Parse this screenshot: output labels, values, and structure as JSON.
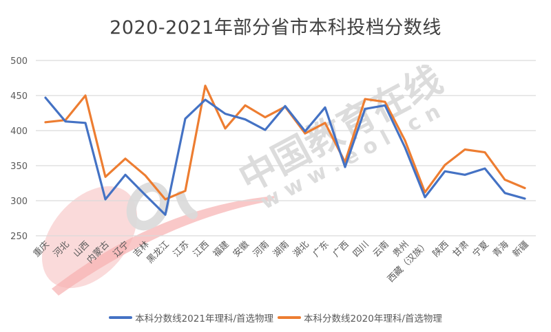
{
  "chart_data": {
    "type": "line",
    "title": "2020-2021年部分省市本科投档分数线",
    "xlabel": "",
    "ylabel": "",
    "ylim": [
      250,
      500
    ],
    "yticks": [
      250,
      300,
      350,
      400,
      450,
      500
    ],
    "grid": true,
    "legend_position": "bottom",
    "categories": [
      "重庆",
      "河北",
      "山西",
      "内蒙古",
      "辽宁",
      "吉林",
      "黑龙江",
      "江苏",
      "江西",
      "福建",
      "安徽",
      "河南",
      "湖南",
      "湖北",
      "广东",
      "广西",
      "四川",
      "云南",
      "贵州",
      "西藏（汉族）",
      "陕西",
      "甘肃",
      "宁夏",
      "青海",
      "新疆"
    ],
    "series": [
      {
        "name": "本科分数线2021年理科/首选物理",
        "color": "#4472C4",
        "values": [
          447,
          413,
          411,
          302,
          337,
          308,
          280,
          417,
          444,
          424,
          416,
          401,
          435,
          399,
          433,
          348,
          431,
          436,
          376,
          305,
          342,
          337,
          346,
          311,
          303
        ]
      },
      {
        "name": "本科分数线2020年理科/首选物理",
        "color": "#ED7D31",
        "values": [
          412,
          415,
          450,
          334,
          360,
          336,
          302,
          314,
          464,
          403,
          436,
          419,
          434,
          396,
          411,
          355,
          445,
          441,
          386,
          312,
          351,
          373,
          369,
          330,
          318
        ]
      }
    ]
  },
  "watermark": {
    "text_cn": "中国教育在线",
    "text_url": "w w w . e o l . c n",
    "logo": "eol"
  }
}
